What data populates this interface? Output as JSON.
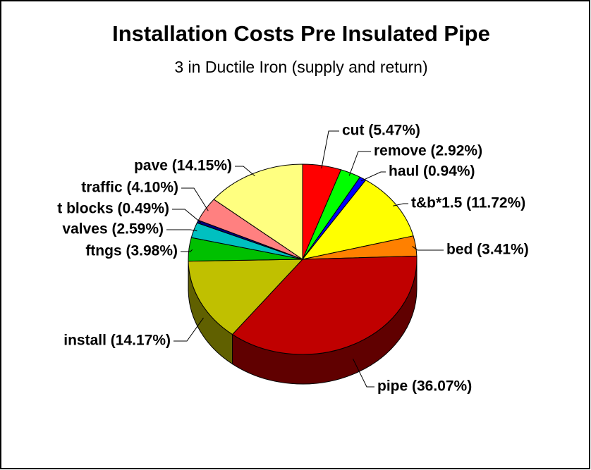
{
  "chart_data": {
    "type": "pie",
    "title": "Installation Costs Pre Insulated Pipe",
    "subtitle": "3 in Ductile Iron (supply and return)",
    "values": [
      5.47,
      2.92,
      0.94,
      11.72,
      3.41,
      36.07,
      14.17,
      3.98,
      2.59,
      0.49,
      4.1,
      14.15
    ],
    "value_labels": [
      "cut (5.47%)",
      "remove (2.92%)",
      "haul (0.94%)",
      "t&b*1.5 (11.72%)",
      "bed (3.41%)",
      "pipe (36.07%)",
      "install (14.17%)",
      "ftngs (3.98%)",
      "valves (2.59%)",
      "t blocks (0.49%)",
      "traffic (4.10%)",
      "pave (14.15%)"
    ],
    "colors": [
      "#ff0000",
      "#00ff00",
      "#0000ff",
      "#ffff00",
      "#ff8000",
      "#c00000",
      "#c0c000",
      "#00c000",
      "#00c0c0",
      "#000080",
      "#ff8080",
      "#ffff80"
    ]
  }
}
